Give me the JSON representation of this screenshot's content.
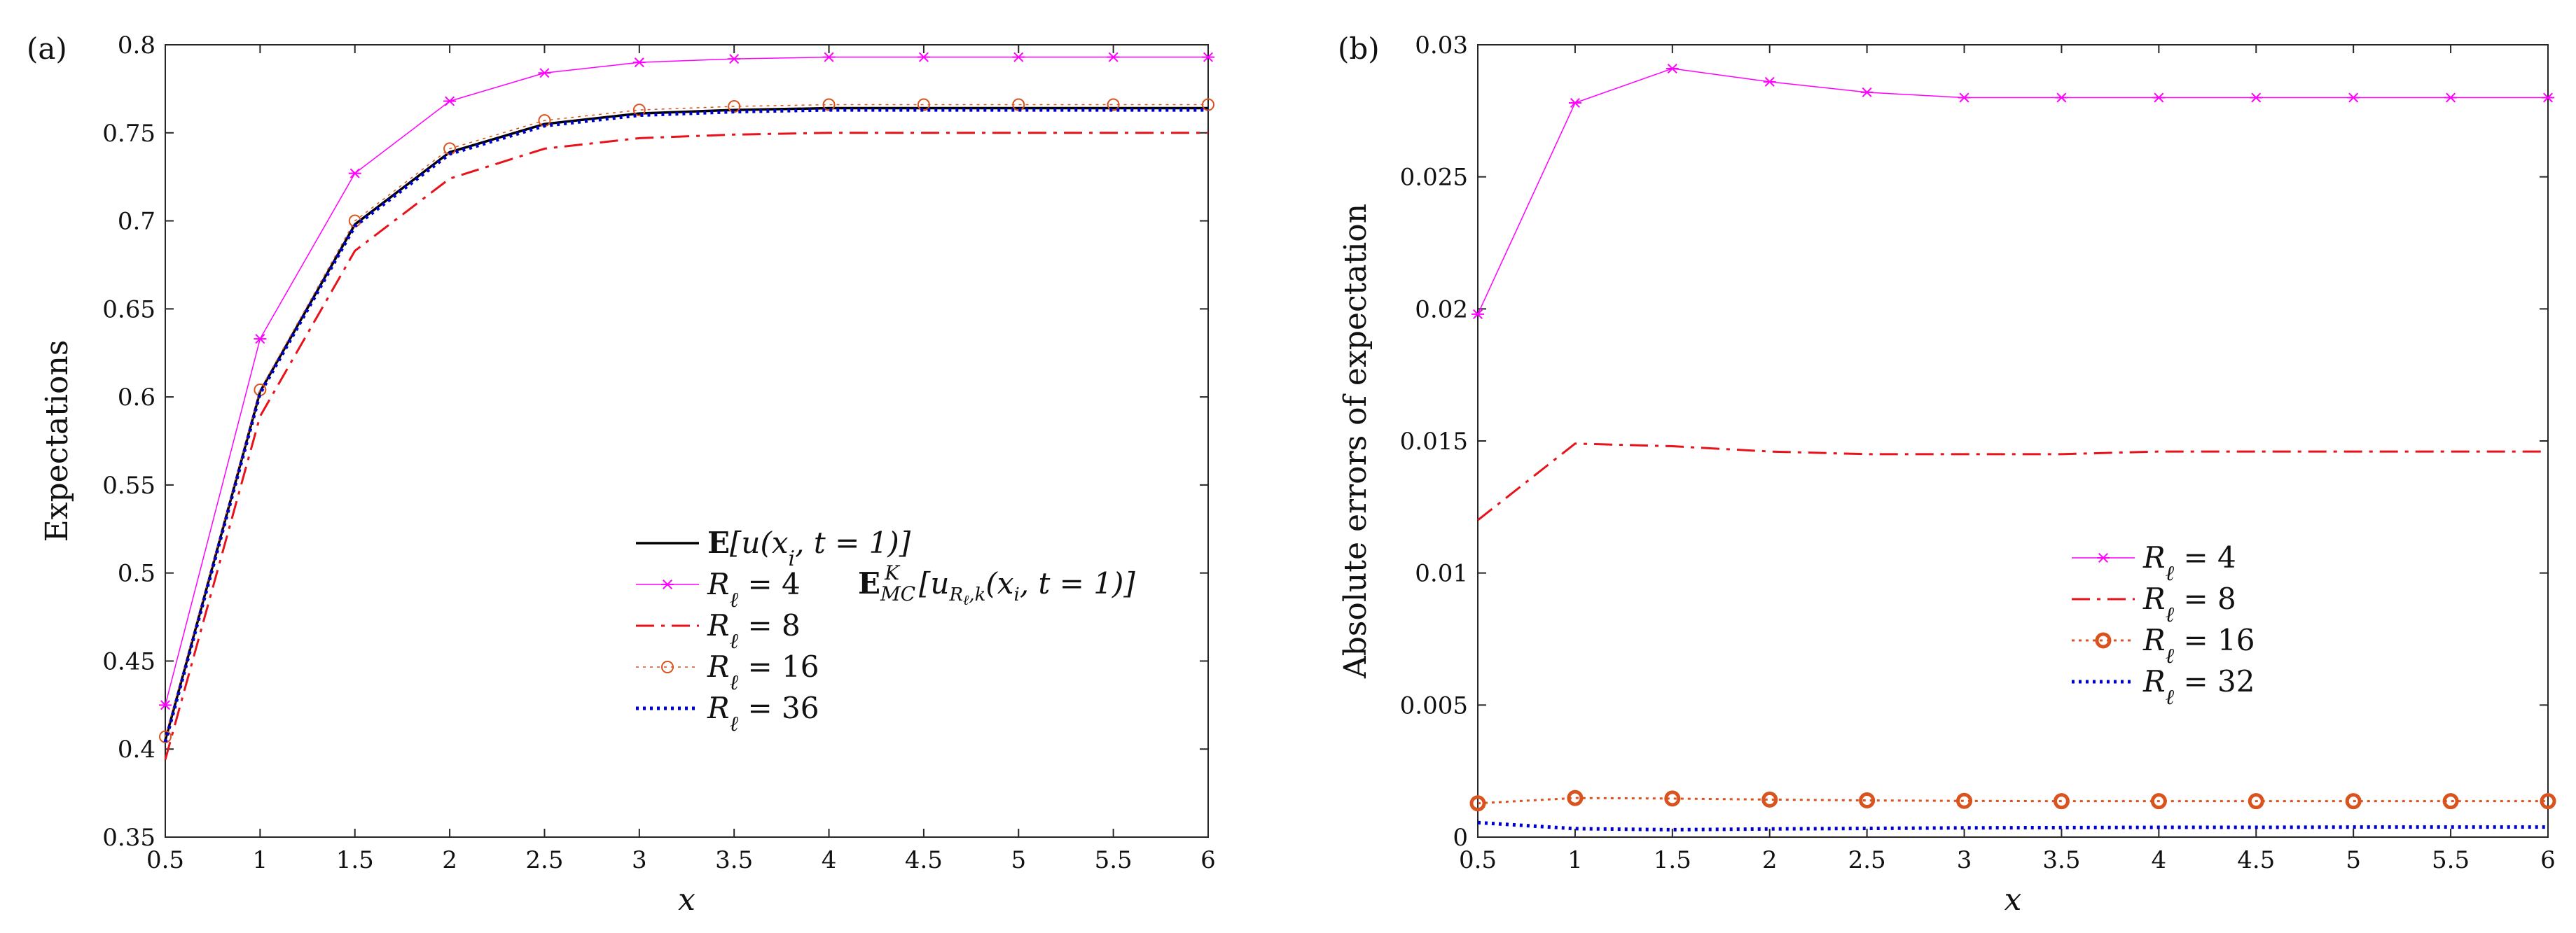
{
  "chart_data": [
    {
      "type": "line",
      "panel_label": "(a)",
      "xlabel": "x",
      "ylabel": "Expectations",
      "x": [
        0.5,
        1,
        1.5,
        2,
        2.5,
        3,
        3.5,
        4,
        4.5,
        5,
        5.5,
        6
      ],
      "x_tick_labels": [
        "0.5",
        "1",
        "1.5",
        "2",
        "2.5",
        "3",
        "3.5",
        "4",
        "4.5",
        "5",
        "5.5",
        "6"
      ],
      "xlim": [
        0.5,
        6
      ],
      "ylim": [
        0.35,
        0.8
      ],
      "y_ticks": [
        0.35,
        0.4,
        0.45,
        0.5,
        0.55,
        0.6,
        0.65,
        0.7,
        0.75,
        0.8
      ],
      "y_tick_labels": [
        "0.35",
        "0.4",
        "0.45",
        "0.5",
        "0.55",
        "0.6",
        "0.65",
        "0.7",
        "0.75",
        "0.8"
      ],
      "grid": false,
      "legend_position": "lower-right",
      "legend_heading": "E_MC^K[u_{R_ℓ,k}(x_i, t = 1)]",
      "series": [
        {
          "name": "E[u(x_i, t = 1)]",
          "label_bold": "E",
          "label_rest": "[u(x",
          "label_sub": "i",
          "label_tail": ", t = 1)]",
          "color": "#000000",
          "style": "solid",
          "marker": "none",
          "width": 3.5,
          "values": [
            0.405,
            0.603,
            0.698,
            0.739,
            0.755,
            0.761,
            0.763,
            0.764,
            0.764,
            0.764,
            0.764,
            0.764
          ]
        },
        {
          "name": "R_ℓ = 4",
          "label_main": "R",
          "label_sub": "ℓ",
          "label_tail": " = 4",
          "color": "#ff00ff",
          "style": "solid",
          "marker": "star",
          "width": 1.5,
          "values": [
            0.425,
            0.633,
            0.727,
            0.768,
            0.784,
            0.79,
            0.792,
            0.793,
            0.793,
            0.793,
            0.793,
            0.793
          ]
        },
        {
          "name": "R_ℓ = 8",
          "label_main": "R",
          "label_sub": "ℓ",
          "label_tail": " = 8",
          "color": "#e8121b",
          "style": "dashdot",
          "marker": "none",
          "width": 3,
          "values": [
            0.394,
            0.589,
            0.683,
            0.724,
            0.741,
            0.747,
            0.749,
            0.75,
            0.75,
            0.75,
            0.75,
            0.75
          ]
        },
        {
          "name": "R_ℓ = 16",
          "label_main": "R",
          "label_sub": "ℓ",
          "label_tail": " = 16",
          "color": "#d9531e",
          "style": "dotted",
          "marker": "circle",
          "width": 1.5,
          "values": [
            0.407,
            0.604,
            0.7,
            0.741,
            0.757,
            0.763,
            0.765,
            0.766,
            0.766,
            0.766,
            0.766,
            0.766
          ]
        },
        {
          "name": "R_ℓ = 36",
          "label_main": "R",
          "label_sub": "ℓ",
          "label_tail": " = 36",
          "color": "#0000cc",
          "style": "dotted",
          "marker": "none",
          "width": 5,
          "values": [
            0.404,
            0.602,
            0.697,
            0.738,
            0.754,
            0.76,
            0.762,
            0.763,
            0.763,
            0.763,
            0.763,
            0.763
          ]
        }
      ]
    },
    {
      "type": "line",
      "panel_label": "(b)",
      "xlabel": "x",
      "ylabel": "Absolute errors of expectation",
      "x": [
        0.5,
        1,
        1.5,
        2,
        2.5,
        3,
        3.5,
        4,
        4.5,
        5,
        5.5,
        6
      ],
      "x_tick_labels": [
        "0.5",
        "1",
        "1.5",
        "2",
        "2.5",
        "3",
        "3.5",
        "4",
        "4.5",
        "5",
        "5.5",
        "6"
      ],
      "xlim": [
        0.5,
        6
      ],
      "ylim": [
        0,
        0.03
      ],
      "y_ticks": [
        0,
        0.005,
        0.01,
        0.015,
        0.02,
        0.025,
        0.03
      ],
      "y_tick_labels": [
        "0",
        "0.005",
        "0.01",
        "0.015",
        "0.02",
        "0.025",
        "0.03"
      ],
      "grid": false,
      "legend_position": "center-right",
      "series": [
        {
          "name": "R_ℓ = 4",
          "label_main": "R",
          "label_sub": "ℓ",
          "label_tail": " = 4",
          "color": "#ff00ff",
          "style": "solid",
          "marker": "star",
          "width": 1.5,
          "values": [
            0.0198,
            0.0278,
            0.0291,
            0.0286,
            0.0282,
            0.028,
            0.028,
            0.028,
            0.028,
            0.028,
            0.028,
            0.028
          ]
        },
        {
          "name": "R_ℓ = 8",
          "label_main": "R",
          "label_sub": "ℓ",
          "label_tail": " = 8",
          "color": "#e8121b",
          "style": "dashdot",
          "marker": "none",
          "width": 3,
          "values": [
            0.012,
            0.0149,
            0.0148,
            0.0146,
            0.0145,
            0.0145,
            0.0145,
            0.0146,
            0.0146,
            0.0146,
            0.0146,
            0.0146
          ]
        },
        {
          "name": "R_ℓ = 16",
          "label_main": "R",
          "label_sub": "ℓ",
          "label_tail": " = 16",
          "color": "#d9531e",
          "style": "dotted",
          "marker": "circle-bold",
          "width": 3,
          "values": [
            0.00128,
            0.00148,
            0.00146,
            0.00142,
            0.00139,
            0.00137,
            0.00136,
            0.00136,
            0.00136,
            0.00136,
            0.00136,
            0.00136
          ]
        },
        {
          "name": "R_ℓ = 32",
          "label_main": "R",
          "label_sub": "ℓ",
          "label_tail": " = 32",
          "color": "#0000cc",
          "style": "dotted",
          "marker": "none",
          "width": 5,
          "values": [
            0.00055,
            0.00032,
            0.00028,
            0.00031,
            0.00033,
            0.00035,
            0.00036,
            0.00037,
            0.00037,
            0.00038,
            0.00038,
            0.00038
          ]
        }
      ]
    }
  ]
}
